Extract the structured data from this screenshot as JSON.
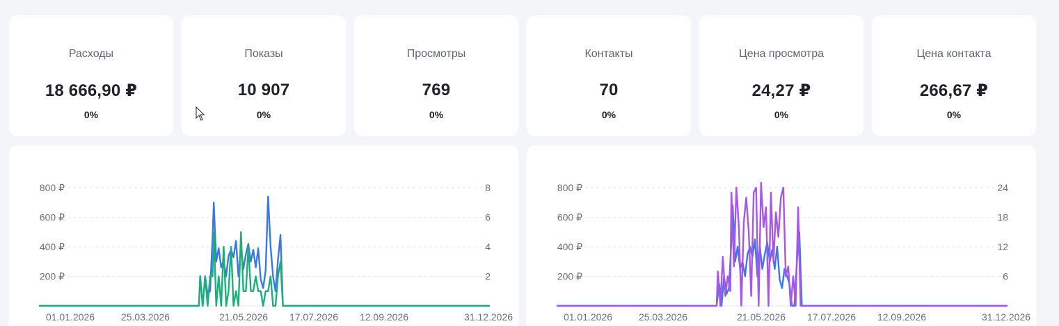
{
  "stats": [
    {
      "label": "Расходы",
      "value": "18 666,90 ₽",
      "delta": "0%"
    },
    {
      "label": "Показы",
      "value": "10 907",
      "delta": "0%"
    },
    {
      "label": "Просмотры",
      "value": "769",
      "delta": "0%"
    },
    {
      "label": "Контакты",
      "value": "70",
      "delta": "0%"
    },
    {
      "label": "Цена просмотра",
      "value": "24,27 ₽",
      "delta": "0%"
    },
    {
      "label": "Цена контакта",
      "value": "266,67 ₽",
      "delta": "0%"
    }
  ],
  "colors": {
    "blue": "#3b78e7",
    "green": "#1fae7a",
    "purple": "#a855e8",
    "axis_text": "#6b7079",
    "grid": "#e3e5e9"
  },
  "chart_data": [
    {
      "type": "line",
      "x_tick_labels": [
        "01.01.2026",
        "25.03.2026",
        "21.05.2026",
        "17.07.2026",
        "12.09.2026",
        "31.12.2026"
      ],
      "x_range": [
        "01.01.2026",
        "31.12.2026"
      ],
      "y_left_ticks": [
        "200 ₽",
        "400 ₽",
        "600 ₽",
        "800 ₽"
      ],
      "y_left_range": [
        0,
        800
      ],
      "y_right_ticks": [
        "2",
        "4",
        "6",
        "8"
      ],
      "y_right_range": [
        0,
        8
      ],
      "grid": "dashed horizontal",
      "series": [
        {
          "color": "blue",
          "axis": "left",
          "points": [
            [
              "01.01.2026",
              0
            ],
            [
              "10.05.2026",
              0
            ],
            [
              "11.05.2026",
              200
            ],
            [
              "13.05.2026",
              0
            ],
            [
              "15.05.2026",
              200
            ],
            [
              "17.05.2026",
              80
            ],
            [
              "19.05.2026",
              100
            ],
            [
              "21.05.2026",
              460
            ],
            [
              "22.05.2026",
              700
            ],
            [
              "24.05.2026",
              300
            ],
            [
              "26.05.2026",
              390
            ],
            [
              "28.05.2026",
              260
            ],
            [
              "30.05.2026",
              310
            ],
            [
              "01.06.2026",
              200
            ],
            [
              "03.06.2026",
              340
            ],
            [
              "05.06.2026",
              380
            ],
            [
              "07.06.2026",
              330
            ],
            [
              "09.06.2026",
              440
            ],
            [
              "11.06.2026",
              200
            ],
            [
              "13.06.2026",
              400
            ],
            [
              "15.06.2026",
              250
            ],
            [
              "17.06.2026",
              350
            ],
            [
              "19.06.2026",
              420
            ],
            [
              "21.06.2026",
              300
            ],
            [
              "23.06.2026",
              380
            ],
            [
              "25.06.2026",
              260
            ],
            [
              "27.06.2026",
              390
            ],
            [
              "29.06.2026",
              180
            ],
            [
              "01.07.2026",
              120
            ],
            [
              "03.07.2026",
              240
            ],
            [
              "05.07.2026",
              740
            ],
            [
              "07.07.2026",
              400
            ],
            [
              "09.07.2026",
              200
            ],
            [
              "11.07.2026",
              100
            ],
            [
              "13.07.2026",
              310
            ],
            [
              "15.07.2026",
              480
            ],
            [
              "17.07.2026",
              0
            ],
            [
              "31.12.2026",
              0
            ]
          ]
        },
        {
          "color": "green",
          "axis": "right",
          "points": [
            [
              "01.01.2026",
              0
            ],
            [
              "10.05.2026",
              0
            ],
            [
              "11.05.2026",
              2
            ],
            [
              "13.05.2026",
              0
            ],
            [
              "15.05.2026",
              2
            ],
            [
              "17.05.2026",
              0
            ],
            [
              "19.05.2026",
              2
            ],
            [
              "21.05.2026",
              2
            ],
            [
              "22.05.2026",
              5
            ],
            [
              "24.05.2026",
              0
            ],
            [
              "26.05.2026",
              2
            ],
            [
              "28.05.2026",
              0
            ],
            [
              "30.05.2026",
              4
            ],
            [
              "01.06.2026",
              0
            ],
            [
              "03.06.2026",
              1
            ],
            [
              "05.06.2026",
              4
            ],
            [
              "07.06.2026",
              0
            ],
            [
              "09.06.2026",
              1
            ],
            [
              "11.06.2026",
              0
            ],
            [
              "13.06.2026",
              5
            ],
            [
              "15.06.2026",
              1
            ],
            [
              "17.06.2026",
              1
            ],
            [
              "19.06.2026",
              4
            ],
            [
              "21.06.2026",
              1
            ],
            [
              "23.06.2026",
              1
            ],
            [
              "25.06.2026",
              2
            ],
            [
              "27.06.2026",
              1
            ],
            [
              "29.06.2026",
              1
            ],
            [
              "01.07.2026",
              0
            ],
            [
              "03.07.2026",
              1
            ],
            [
              "05.07.2026",
              1
            ],
            [
              "07.07.2026",
              2
            ],
            [
              "09.07.2026",
              0
            ],
            [
              "11.07.2026",
              0
            ],
            [
              "13.07.2026",
              2
            ],
            [
              "15.07.2026",
              3
            ],
            [
              "17.07.2026",
              0
            ],
            [
              "31.12.2026",
              0
            ]
          ]
        }
      ]
    },
    {
      "type": "line",
      "x_tick_labels": [
        "01.01.2026",
        "25.03.2026",
        "21.05.2026",
        "17.07.2026",
        "12.09.2026",
        "31.12.2026"
      ],
      "x_range": [
        "01.01.2026",
        "31.12.2026"
      ],
      "y_left_ticks": [
        "200 ₽",
        "400 ₽",
        "600 ₽",
        "800 ₽"
      ],
      "y_left_range": [
        0,
        800
      ],
      "y_right_ticks": [
        "6",
        "12",
        "18",
        "24"
      ],
      "y_right_range": [
        0,
        24
      ],
      "grid": "dashed horizontal",
      "series": [
        {
          "color": "blue",
          "axis": "left",
          "points": [
            [
              "01.01.2026",
              0
            ],
            [
              "10.05.2026",
              0
            ],
            [
              "12.05.2026",
              150
            ],
            [
              "14.05.2026",
              0
            ],
            [
              "16.05.2026",
              200
            ],
            [
              "18.05.2026",
              80
            ],
            [
              "20.05.2026",
              120
            ],
            [
              "22.05.2026",
              450
            ],
            [
              "23.05.2026",
              680
            ],
            [
              "25.05.2026",
              300
            ],
            [
              "27.05.2026",
              400
            ],
            [
              "29.05.2026",
              250
            ],
            [
              "31.05.2026",
              300
            ],
            [
              "02.06.2026",
              200
            ],
            [
              "04.06.2026",
              350
            ],
            [
              "06.06.2026",
              400
            ],
            [
              "08.06.2026",
              330
            ],
            [
              "10.06.2026",
              450
            ],
            [
              "12.06.2026",
              200
            ],
            [
              "14.06.2026",
              400
            ],
            [
              "16.06.2026",
              250
            ],
            [
              "18.06.2026",
              350
            ],
            [
              "20.06.2026",
              430
            ],
            [
              "22.06.2026",
              300
            ],
            [
              "24.06.2026",
              380
            ],
            [
              "26.06.2026",
              250
            ],
            [
              "28.06.2026",
              400
            ],
            [
              "30.06.2026",
              180
            ],
            [
              "02.07.2026",
              120
            ],
            [
              "04.07.2026",
              250
            ],
            [
              "06.07.2026",
              200
            ],
            [
              "08.07.2026",
              150
            ],
            [
              "10.07.2026",
              0
            ],
            [
              "12.07.2026",
              0
            ],
            [
              "14.07.2026",
              300
            ],
            [
              "16.07.2026",
              500
            ],
            [
              "18.07.2026",
              0
            ],
            [
              "31.12.2026",
              0
            ]
          ]
        },
        {
          "color": "purple",
          "axis": "right",
          "points": [
            [
              "01.01.2026",
              0
            ],
            [
              "10.05.2026",
              0
            ],
            [
              "11.05.2026",
              7
            ],
            [
              "13.05.2026",
              0
            ],
            [
              "15.05.2026",
              10
            ],
            [
              "17.05.2026",
              2
            ],
            [
              "19.05.2026",
              6
            ],
            [
              "21.05.2026",
              3
            ],
            [
              "22.05.2026",
              23
            ],
            [
              "24.05.2026",
              8
            ],
            [
              "26.05.2026",
              24
            ],
            [
              "28.05.2026",
              16
            ],
            [
              "30.05.2026",
              0
            ],
            [
              "01.06.2026",
              17
            ],
            [
              "03.06.2026",
              22
            ],
            [
              "05.06.2026",
              15
            ],
            [
              "07.06.2026",
              2
            ],
            [
              "09.06.2026",
              23
            ],
            [
              "11.06.2026",
              24
            ],
            [
              "13.06.2026",
              0
            ],
            [
              "15.06.2026",
              25
            ],
            [
              "17.06.2026",
              16
            ],
            [
              "19.06.2026",
              20
            ],
            [
              "21.06.2026",
              0
            ],
            [
              "23.06.2026",
              23
            ],
            [
              "25.06.2026",
              9
            ],
            [
              "27.06.2026",
              19
            ],
            [
              "29.06.2026",
              14
            ],
            [
              "01.07.2026",
              22
            ],
            [
              "03.07.2026",
              24
            ],
            [
              "05.07.2026",
              6
            ],
            [
              "07.07.2026",
              8
            ],
            [
              "09.07.2026",
              0
            ],
            [
              "11.07.2026",
              6
            ],
            [
              "13.07.2026",
              0
            ],
            [
              "15.07.2026",
              20
            ],
            [
              "17.07.2026",
              0
            ],
            [
              "31.12.2026",
              0
            ]
          ]
        }
      ]
    }
  ]
}
